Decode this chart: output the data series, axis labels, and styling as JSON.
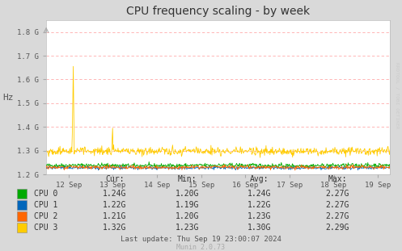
{
  "title": "CPU frequency scaling - by week",
  "ylabel": "Hz",
  "background_color": "#d9d9d9",
  "plot_bg_color": "#ffffff",
  "grid_color": "#ffaaaa",
  "x_labels": [
    "12 Sep",
    "13 Sep",
    "14 Sep",
    "15 Sep",
    "16 Sep",
    "17 Sep",
    "18 Sep",
    "19 Sep"
  ],
  "ylim": [
    1200000000.0,
    1850000000.0
  ],
  "yticks": [
    1200000000.0,
    1300000000.0,
    1400000000.0,
    1500000000.0,
    1600000000.0,
    1700000000.0,
    1800000000.0
  ],
  "ytick_labels": [
    "1.2 G",
    "1.3 G",
    "1.4 G",
    "1.5 G",
    "1.6 G",
    "1.7 G",
    "1.8 G"
  ],
  "cpu_colors": [
    "#00aa00",
    "#0066bb",
    "#ff6600",
    "#ffcc00"
  ],
  "cpu_names": [
    "CPU 0",
    "CPU 1",
    "CPU 2",
    "CPU 3"
  ],
  "legend_headers": [
    "Cur:",
    "Min:",
    "Avg:",
    "Max:"
  ],
  "legend_data": [
    [
      "1.24G",
      "1.20G",
      "1.24G",
      "2.27G"
    ],
    [
      "1.22G",
      "1.19G",
      "1.22G",
      "2.27G"
    ],
    [
      "1.21G",
      "1.20G",
      "1.23G",
      "2.27G"
    ],
    [
      "1.32G",
      "1.23G",
      "1.30G",
      "2.29G"
    ]
  ],
  "last_update": "Last update: Thu Sep 19 23:00:07 2024",
  "munin_version": "Munin 2.0.73",
  "watermark": "RRDTOOL / TOBI OETIKER",
  "n_points": 700,
  "base_freq_cpu0": 1238000000.0,
  "base_freq_cpu1": 1228000000.0,
  "base_freq_cpu2": 1230000000.0,
  "base_freq_cpu3": 1298000000.0,
  "noise_cpu0": 12000000.0,
  "noise_cpu1": 10000000.0,
  "noise_cpu2": 11000000.0,
  "noise_cpu3": 25000000.0,
  "spike_index": 55,
  "spike_value": 1655000000.0,
  "spike2_index": 135,
  "spike2_value": 1395000000.0
}
